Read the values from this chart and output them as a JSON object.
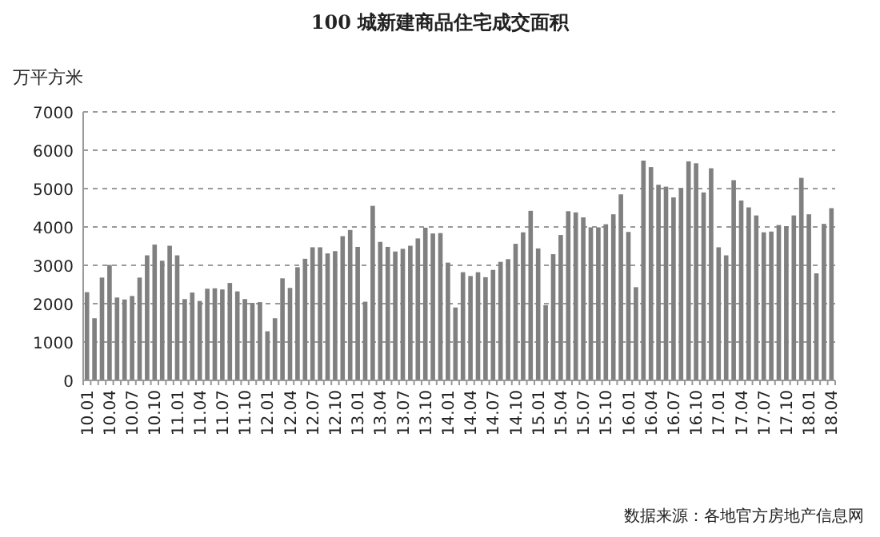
{
  "chart_data": {
    "type": "bar",
    "title": "100 城新建商品住宅成交面积",
    "ylabel": "万平方米",
    "categories": [
      "10.01",
      null,
      null,
      "10.04",
      null,
      null,
      "10.07",
      null,
      null,
      "10.10",
      null,
      null,
      "11.01",
      null,
      null,
      "11.04",
      null,
      null,
      "11.07",
      null,
      null,
      "11.10",
      null,
      null,
      "12.01",
      null,
      null,
      "12.04",
      null,
      null,
      "12.07",
      null,
      null,
      "12.10",
      null,
      null,
      "13.01",
      null,
      null,
      "13.04",
      null,
      null,
      "13.07",
      null,
      null,
      "13.10",
      null,
      null,
      "14.01",
      null,
      null,
      "14.04",
      null,
      null,
      "14.07",
      null,
      null,
      "14.10",
      null,
      null,
      "15.01",
      null,
      null,
      "15.04",
      null,
      null,
      "15.07",
      null,
      null,
      "15.10",
      null,
      null,
      "16.01",
      null,
      null,
      "16.04",
      null,
      null,
      "16.07",
      null,
      null,
      "16.10",
      null,
      null,
      "17.01",
      null,
      null,
      "17.04",
      null,
      null,
      "17.07",
      null,
      null,
      "17.10",
      null,
      null,
      "18.01",
      null,
      null,
      "18.04"
    ],
    "values": [
      2300,
      1620,
      2680,
      3010,
      2160,
      2110,
      2200,
      2680,
      3260,
      3540,
      3120,
      3510,
      3260,
      2120,
      2290,
      2070,
      2390,
      2400,
      2370,
      2540,
      2320,
      2120,
      2020,
      2040,
      1280,
      1620,
      2660,
      2410,
      2950,
      3170,
      3470,
      3470,
      3310,
      3370,
      3760,
      3920,
      3480,
      2050,
      4550,
      3610,
      3480,
      3360,
      3430,
      3510,
      3700,
      3980,
      3830,
      3840,
      3070,
      1900,
      2820,
      2720,
      2820,
      2690,
      2880,
      3090,
      3160,
      3560,
      3860,
      4420,
      3440,
      1960,
      3290,
      3790,
      4410,
      4380,
      4250,
      3990,
      3990,
      4070,
      4330,
      4850,
      3870,
      2430,
      5730,
      5560,
      5100,
      5050,
      4770,
      5010,
      5710,
      5660,
      4900,
      5530,
      3470,
      3260,
      5220,
      4690,
      4510,
      4300,
      3860,
      3880,
      4050,
      4020,
      4300,
      5280,
      4330,
      2790,
      4080,
      4490
    ],
    "color": "#808080",
    "ylim": [
      0,
      7000
    ],
    "yticks": [
      0,
      1000,
      2000,
      3000,
      4000,
      5000,
      6000,
      7000
    ],
    "grid": "y",
    "annotations": [
      "数据来源：各地官方房地产信息网"
    ]
  }
}
